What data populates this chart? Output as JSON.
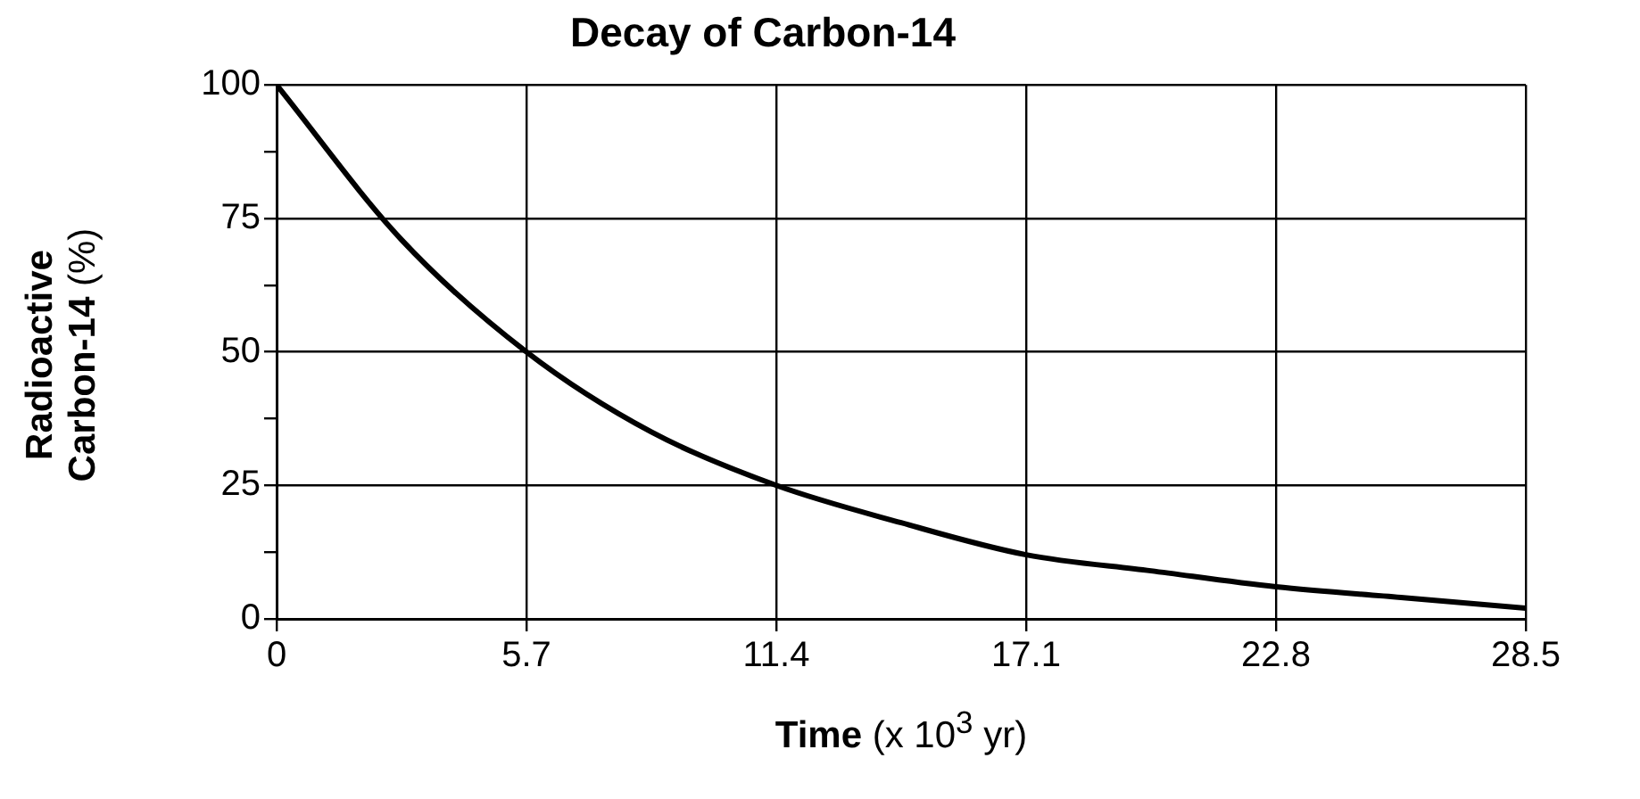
{
  "chart_data": {
    "type": "line",
    "title": "Decay of Carbon-14",
    "xlabel": "Time (x 10$^{3}$ yr)",
    "ylabel": "Radioactive Carbon-14 (%)",
    "x": [
      0,
      2.85,
      5.7,
      8.55,
      11.4,
      14.25,
      17.1,
      19.95,
      22.8,
      25.65,
      28.5
    ],
    "series": [
      {
        "color": "#000000",
        "values": [
          100,
          71,
          50,
          35,
          25,
          18,
          12,
          9,
          6,
          4,
          2
        ]
      }
    ],
    "xlim": [
      0,
      28.5
    ],
    "xticks": [
      0,
      5.7,
      11.4,
      17.1,
      22.8,
      28.5
    ],
    "ylim": [
      0,
      100
    ],
    "yticks": [
      0,
      {
        "value": 12.5,
        "label": null
      },
      25,
      {
        "value": 37.5,
        "label": null
      },
      50,
      {
        "value": 62.5,
        "label": null
      },
      75,
      {
        "value": 87.5,
        "label": null
      },
      100
    ],
    "grid": true,
    "legend": false,
    "marker": "none",
    "line_style": "solid"
  }
}
